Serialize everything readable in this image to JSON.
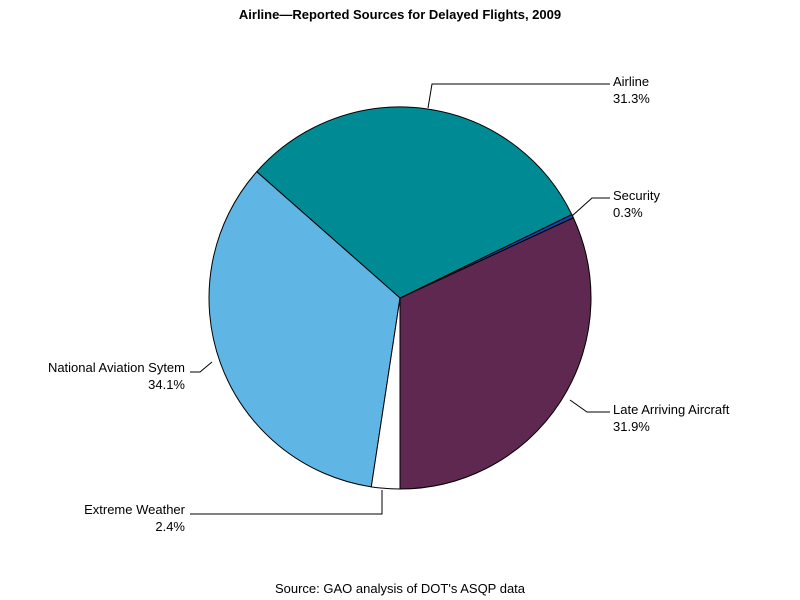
{
  "chart_data": {
    "type": "pie",
    "title": "Airline—Reported Sources for Delayed Flights, 2009",
    "footnote": "Source: GAO analysis of DOT's ASQP data",
    "slices": [
      {
        "label": "Late Arriving Aircraft",
        "value": 31.9,
        "display": "31.9%",
        "color": "#5E2850"
      },
      {
        "label": "Security",
        "value": 0.3,
        "display": "0.3%",
        "color": "#1C3FA8"
      },
      {
        "label": "Airline",
        "value": 31.3,
        "display": "31.3%",
        "color": "#008B94"
      },
      {
        "label": "National Aviation Sytem",
        "value": 34.1,
        "display": "34.1%",
        "color": "#5FB5E3"
      },
      {
        "label": "Extreme Weather",
        "value": 2.4,
        "display": "2.4%",
        "color": "#FFFFFF"
      }
    ]
  }
}
